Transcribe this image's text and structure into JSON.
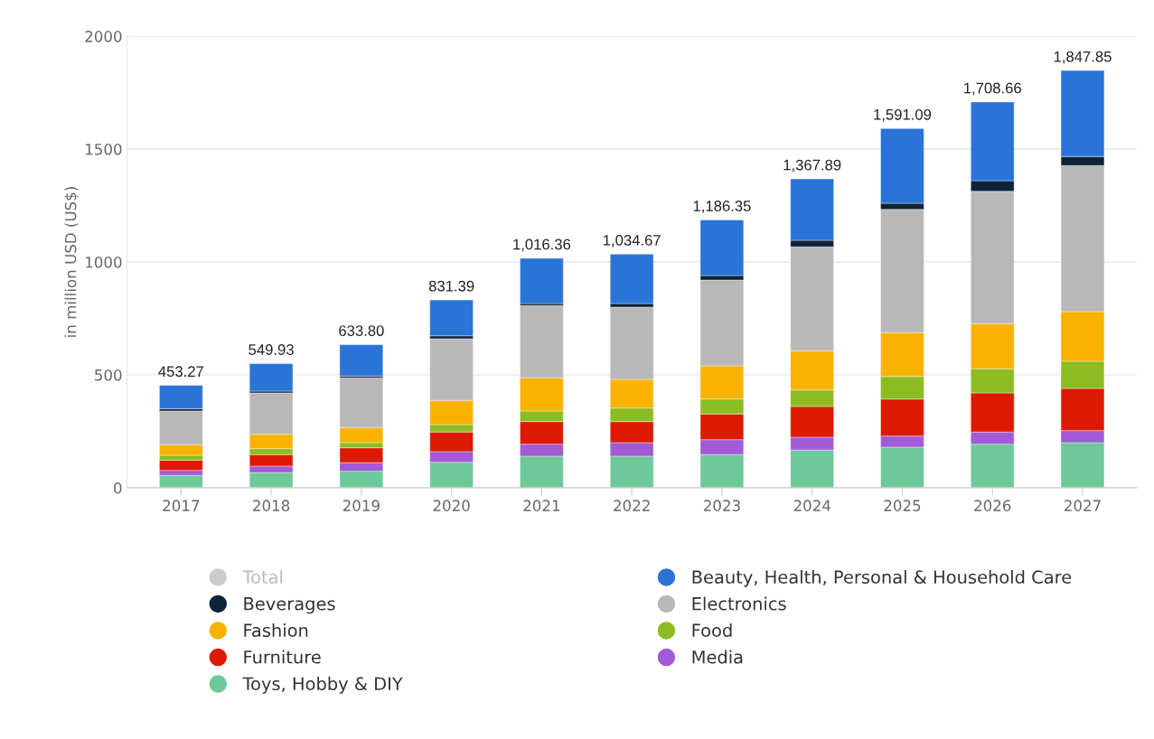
{
  "chart_data": {
    "type": "bar",
    "stacked": true,
    "ylabel": "in million USD (US$)",
    "categories": [
      "2017",
      "2018",
      "2019",
      "2020",
      "2021",
      "2022",
      "2023",
      "2024",
      "2025",
      "2026",
      "2027"
    ],
    "series": [
      {
        "name": "Toys, Hobby & DIY",
        "color": "#6dc99a",
        "values": [
          55,
          67,
          73,
          113,
          140,
          140,
          147,
          167,
          180,
          193,
          200
        ]
      },
      {
        "name": "Media",
        "color": "#a25ad6",
        "values": [
          22,
          29,
          38,
          47,
          53,
          60,
          66,
          57,
          49,
          54,
          53
        ]
      },
      {
        "name": "Furniture",
        "color": "#dd1a00",
        "values": [
          45,
          51,
          66,
          87,
          100,
          93,
          114,
          136,
          164,
          173,
          187
        ]
      },
      {
        "name": "Food",
        "color": "#8bbc21",
        "values": [
          22,
          26,
          23,
          33,
          47,
          60,
          66,
          73,
          100,
          107,
          120
        ]
      },
      {
        "name": "Fashion",
        "color": "#f9b200",
        "values": [
          46,
          64,
          67,
          107,
          147,
          127,
          147,
          174,
          194,
          200,
          220
        ]
      },
      {
        "name": "Electronics",
        "color": "#b8b8b8",
        "values": [
          150,
          183,
          220,
          273,
          320,
          320,
          380,
          460,
          546,
          586,
          647
        ]
      },
      {
        "name": "Beverages",
        "color": "#0d233a",
        "values": [
          10,
          8,
          8,
          13,
          9,
          16,
          20,
          29,
          27,
          47,
          40
        ]
      },
      {
        "name": "Beauty, Health, Personal & Household Care",
        "color": "#2a74d8",
        "values": [
          103.27,
          121.93,
          138.8,
          158.39,
          200.36,
          218.67,
          246.35,
          271.89,
          331.09,
          348.66,
          380.85
        ]
      },
      {
        "name": "Total",
        "color": "#cccccc",
        "values": [
          null,
          null,
          null,
          null,
          null,
          null,
          null,
          null,
          null,
          null,
          null
        ]
      }
    ],
    "totals": [
      "453.27",
      "549.93",
      "633.80",
      "831.39",
      "1,016.36",
      "1,034.67",
      "1,186.35",
      "1,367.89",
      "1,591.09",
      "1,708.66",
      "1,847.85"
    ],
    "ylim": [
      0,
      2000
    ],
    "yticks": [
      0,
      500,
      1000,
      1500,
      2000
    ],
    "grid": "y",
    "legend": "bottom"
  }
}
